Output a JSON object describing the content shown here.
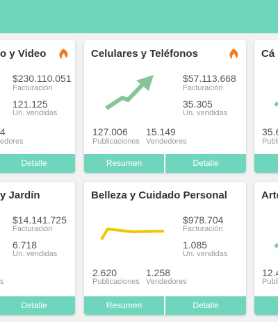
{
  "cards_row1": [
    {
      "title": "o y Video",
      "sales": "$230.110.051",
      "sales_label": "Facturación",
      "units": "121.125",
      "units_label": "Un. vendidas",
      "sellers": "4",
      "sellers_label": "edores",
      "detail": "Detalle"
    },
    {
      "title": "Celulares y Teléfonos",
      "sales": "$57.113.668",
      "sales_label": "Facturación",
      "units": "35.305",
      "units_label": "Un. vendidas",
      "posts": "127.006",
      "posts_label": "Publicaciones",
      "sellers": "15.149",
      "sellers_label": "Vendedores",
      "summary": "Resumen",
      "detail": "Detalle"
    },
    {
      "title": "Cá",
      "posts": "35.6",
      "posts_label": "Publi"
    }
  ],
  "cards_row2": [
    {
      "title": "y Jardín",
      "sales": "$14.141.725",
      "sales_label": "Facturación",
      "units": "6.718",
      "units_label": "Un. vendidas",
      "sellers_label": "s",
      "detail": "Detalle"
    },
    {
      "title": "Belleza y Cuidado Personal",
      "sales": "$978.704",
      "sales_label": "Facturación",
      "units": "1.085",
      "units_label": "Un. vendidas",
      "posts": "2.620",
      "posts_label": "Publicaciones",
      "sellers": "1.258",
      "sellers_label": "Vendedores",
      "summary": "Resumen",
      "detail": "Detalle"
    },
    {
      "title": "Arte",
      "posts": "12.4",
      "posts_label": "Publi"
    }
  ]
}
